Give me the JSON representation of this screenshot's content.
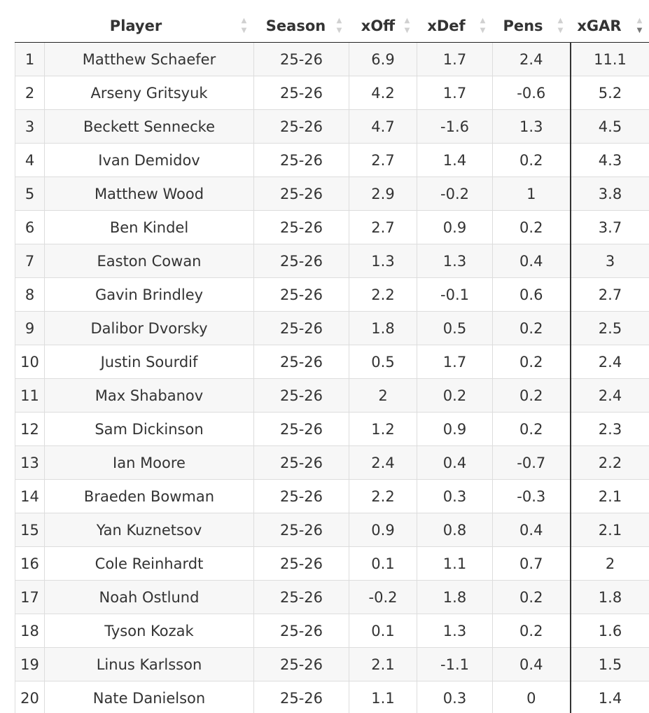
{
  "table": {
    "columns": [
      {
        "key": "rank",
        "label": "",
        "sortable": false
      },
      {
        "key": "player",
        "label": "Player",
        "sortable": true,
        "sort": "none"
      },
      {
        "key": "season",
        "label": "Season",
        "sortable": true,
        "sort": "none"
      },
      {
        "key": "xoff",
        "label": "xOff",
        "sortable": true,
        "sort": "none"
      },
      {
        "key": "xdef",
        "label": "xDef",
        "sortable": true,
        "sort": "none"
      },
      {
        "key": "pens",
        "label": "Pens",
        "sortable": true,
        "sort": "none"
      },
      {
        "key": "xgar",
        "label": "xGAR",
        "sortable": true,
        "sort": "desc"
      }
    ],
    "rows": [
      {
        "rank": "1",
        "player": "Matthew Schaefer",
        "season": "25-26",
        "xoff": "6.9",
        "xdef": "1.7",
        "pens": "2.4",
        "xgar": "11.1"
      },
      {
        "rank": "2",
        "player": "Arseny Gritsyuk",
        "season": "25-26",
        "xoff": "4.2",
        "xdef": "1.7",
        "pens": "-0.6",
        "xgar": "5.2"
      },
      {
        "rank": "3",
        "player": "Beckett Sennecke",
        "season": "25-26",
        "xoff": "4.7",
        "xdef": "-1.6",
        "pens": "1.3",
        "xgar": "4.5"
      },
      {
        "rank": "4",
        "player": "Ivan Demidov",
        "season": "25-26",
        "xoff": "2.7",
        "xdef": "1.4",
        "pens": "0.2",
        "xgar": "4.3"
      },
      {
        "rank": "5",
        "player": "Matthew Wood",
        "season": "25-26",
        "xoff": "2.9",
        "xdef": "-0.2",
        "pens": "1",
        "xgar": "3.8"
      },
      {
        "rank": "6",
        "player": "Ben Kindel",
        "season": "25-26",
        "xoff": "2.7",
        "xdef": "0.9",
        "pens": "0.2",
        "xgar": "3.7"
      },
      {
        "rank": "7",
        "player": "Easton Cowan",
        "season": "25-26",
        "xoff": "1.3",
        "xdef": "1.3",
        "pens": "0.4",
        "xgar": "3"
      },
      {
        "rank": "8",
        "player": "Gavin Brindley",
        "season": "25-26",
        "xoff": "2.2",
        "xdef": "-0.1",
        "pens": "0.6",
        "xgar": "2.7"
      },
      {
        "rank": "9",
        "player": "Dalibor Dvorsky",
        "season": "25-26",
        "xoff": "1.8",
        "xdef": "0.5",
        "pens": "0.2",
        "xgar": "2.5"
      },
      {
        "rank": "10",
        "player": "Justin Sourdif",
        "season": "25-26",
        "xoff": "0.5",
        "xdef": "1.7",
        "pens": "0.2",
        "xgar": "2.4"
      },
      {
        "rank": "11",
        "player": "Max Shabanov",
        "season": "25-26",
        "xoff": "2",
        "xdef": "0.2",
        "pens": "0.2",
        "xgar": "2.4"
      },
      {
        "rank": "12",
        "player": "Sam Dickinson",
        "season": "25-26",
        "xoff": "1.2",
        "xdef": "0.9",
        "pens": "0.2",
        "xgar": "2.3"
      },
      {
        "rank": "13",
        "player": "Ian Moore",
        "season": "25-26",
        "xoff": "2.4",
        "xdef": "0.4",
        "pens": "-0.7",
        "xgar": "2.2"
      },
      {
        "rank": "14",
        "player": "Braeden Bowman",
        "season": "25-26",
        "xoff": "2.2",
        "xdef": "0.3",
        "pens": "-0.3",
        "xgar": "2.1"
      },
      {
        "rank": "15",
        "player": "Yan Kuznetsov",
        "season": "25-26",
        "xoff": "0.9",
        "xdef": "0.8",
        "pens": "0.4",
        "xgar": "2.1"
      },
      {
        "rank": "16",
        "player": "Cole Reinhardt",
        "season": "25-26",
        "xoff": "0.1",
        "xdef": "1.1",
        "pens": "0.7",
        "xgar": "2"
      },
      {
        "rank": "17",
        "player": "Noah Ostlund",
        "season": "25-26",
        "xoff": "-0.2",
        "xdef": "1.8",
        "pens": "0.2",
        "xgar": "1.8"
      },
      {
        "rank": "18",
        "player": "Tyson Kozak",
        "season": "25-26",
        "xoff": "0.1",
        "xdef": "1.3",
        "pens": "0.2",
        "xgar": "1.6"
      },
      {
        "rank": "19",
        "player": "Linus Karlsson",
        "season": "25-26",
        "xoff": "2.1",
        "xdef": "-1.1",
        "pens": "0.4",
        "xgar": "1.5"
      },
      {
        "rank": "20",
        "player": "Nate Danielson",
        "season": "25-26",
        "xoff": "1.1",
        "xdef": "0.3",
        "pens": "0",
        "xgar": "1.4"
      }
    ]
  },
  "colors": {
    "text": "#333333",
    "stripe": "#f7f7f7",
    "border": "#dddddd",
    "sort_inactive": "#d0d0d0",
    "sort_active": "#777777"
  },
  "icons": {
    "sort_up": "sort-asc-icon",
    "sort_down": "sort-desc-icon"
  }
}
